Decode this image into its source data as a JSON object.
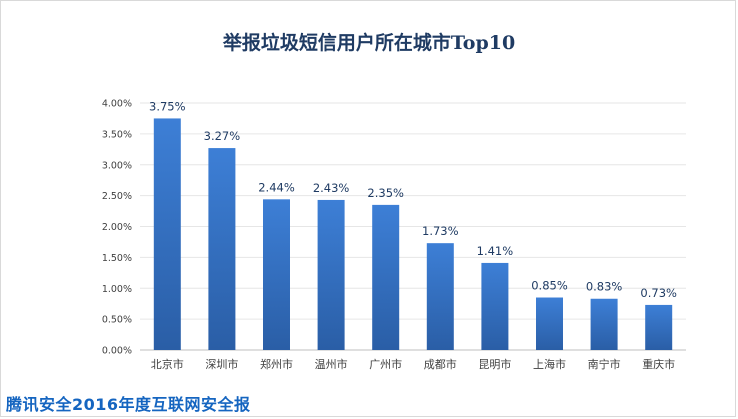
{
  "chart_data": {
    "type": "bar",
    "title": "举报垃圾短信用户所在城市Top10",
    "categories": [
      "北京市",
      "深圳市",
      "郑州市",
      "温州市",
      "广州市",
      "成都市",
      "昆明市",
      "上海市",
      "南宁市",
      "重庆市"
    ],
    "values": [
      3.75,
      3.27,
      2.44,
      2.43,
      2.35,
      1.73,
      1.41,
      0.85,
      0.83,
      0.73
    ],
    "data_labels": [
      "3.75%",
      "3.27%",
      "2.44%",
      "2.43%",
      "2.35%",
      "1.73%",
      "1.41%",
      "0.85%",
      "0.83%",
      "0.73%"
    ],
    "y_ticks": [
      "0.00%",
      "0.50%",
      "1.00%",
      "1.50%",
      "2.00%",
      "2.50%",
      "3.00%",
      "3.50%",
      "4.00%"
    ],
    "y_tick_values": [
      0,
      0.5,
      1,
      1.5,
      2,
      2.5,
      3,
      3.5,
      4
    ],
    "ylim": [
      0,
      4
    ],
    "xlabel": "",
    "ylabel": "",
    "grid": true,
    "bar_color_top": "#3d7fd6",
    "bar_color_bottom": "#2a5ea6",
    "grid_color": "#e6e6e6"
  },
  "footer": {
    "brand_text": "腾讯安全2016年度互联网安全报"
  }
}
